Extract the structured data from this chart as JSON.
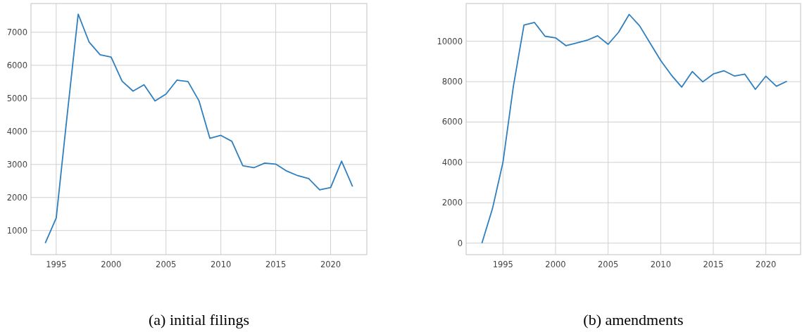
{
  "chart_data": [
    {
      "type": "line",
      "title": "(a) initial filings",
      "x": [
        1994,
        1995,
        1996,
        1997,
        1998,
        1999,
        2000,
        2001,
        2002,
        2003,
        2004,
        2005,
        2006,
        2007,
        2008,
        2009,
        2010,
        2011,
        2012,
        2013,
        2014,
        2015,
        2016,
        2017,
        2018,
        2019,
        2020,
        2021,
        2022
      ],
      "series": [
        {
          "color": "#2f7fbf",
          "values": [
            620,
            1380,
            4500,
            7550,
            6700,
            6320,
            6250,
            5520,
            5220,
            5410,
            4920,
            5130,
            5550,
            5510,
            4930,
            3790,
            3880,
            3700,
            2960,
            2900,
            3040,
            3010,
            2800,
            2660,
            2570,
            2230,
            2300,
            3100,
            2330
          ]
        }
      ],
      "xlim": [
        1992.7,
        2023.3
      ],
      "xticks": [
        1995,
        2000,
        2005,
        2010,
        2015,
        2020
      ],
      "ylim": [
        270,
        7870
      ],
      "yticks": [
        1000,
        2000,
        3000,
        4000,
        5000,
        6000,
        7000
      ],
      "grid": true
    },
    {
      "type": "line",
      "title": "(b) amendments",
      "x": [
        1993,
        1994,
        1995,
        1996,
        1997,
        1998,
        1999,
        2000,
        2001,
        2002,
        2003,
        2004,
        2005,
        2006,
        2007,
        2008,
        2009,
        2010,
        2011,
        2012,
        2013,
        2014,
        2015,
        2016,
        2017,
        2018,
        2019,
        2020,
        2021,
        2022
      ],
      "series": [
        {
          "color": "#2f7fbf",
          "values": [
            0,
            1700,
            4000,
            7800,
            10800,
            10930,
            10250,
            10170,
            9780,
            9910,
            10050,
            10270,
            9850,
            10450,
            11330,
            10760,
            9900,
            9050,
            8330,
            7730,
            8500,
            7990,
            8380,
            8540,
            8280,
            8370,
            7620,
            8270,
            7770,
            8020
          ]
        }
      ],
      "xlim": [
        1991.5,
        2023.3
      ],
      "xticks": [
        1995,
        2000,
        2005,
        2010,
        2015,
        2020
      ],
      "ylim": [
        -570,
        11870
      ],
      "yticks": [
        0,
        2000,
        4000,
        6000,
        8000,
        10000
      ],
      "grid": true
    }
  ]
}
